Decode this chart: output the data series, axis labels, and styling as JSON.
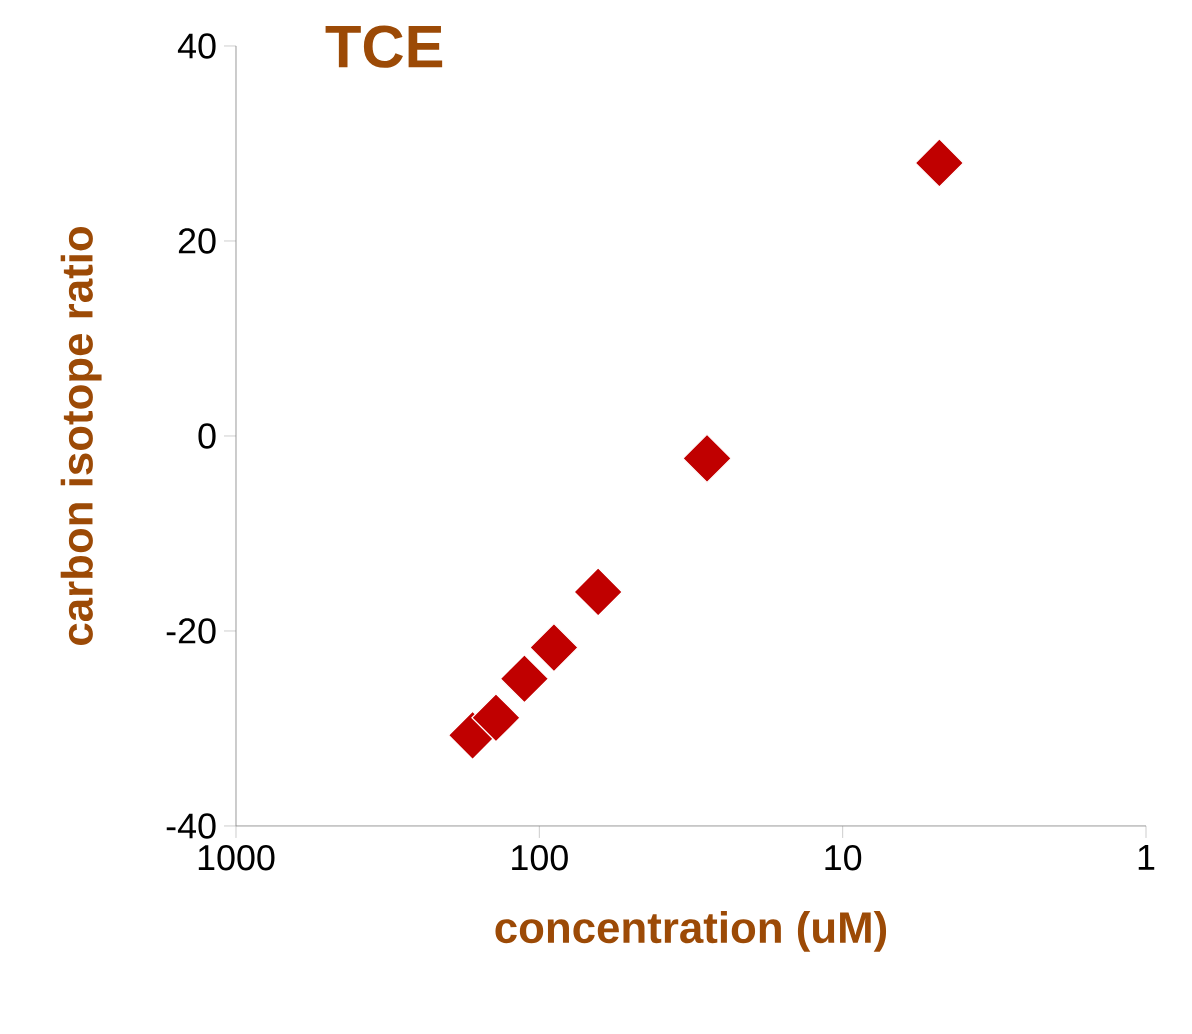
{
  "chart_data": {
    "type": "scatter",
    "title": "TCE",
    "xlabel": "concentration (uM)",
    "ylabel": "carbon isotope ratio",
    "log": "x",
    "xlim": [
      1000,
      1
    ],
    "xticks": [
      1000,
      100,
      10,
      1
    ],
    "ylim": [
      -40,
      40
    ],
    "yticks": [
      -40,
      -20,
      0,
      20,
      40
    ],
    "x": [
      166,
      139,
      112,
      89.5,
      64,
      28,
      4.8
    ],
    "values": [
      -30.7,
      -28.9,
      -24.9,
      -21.7,
      -16.0,
      -2.3,
      28.0
    ],
    "color": "#c00000",
    "marker": "diamond"
  }
}
